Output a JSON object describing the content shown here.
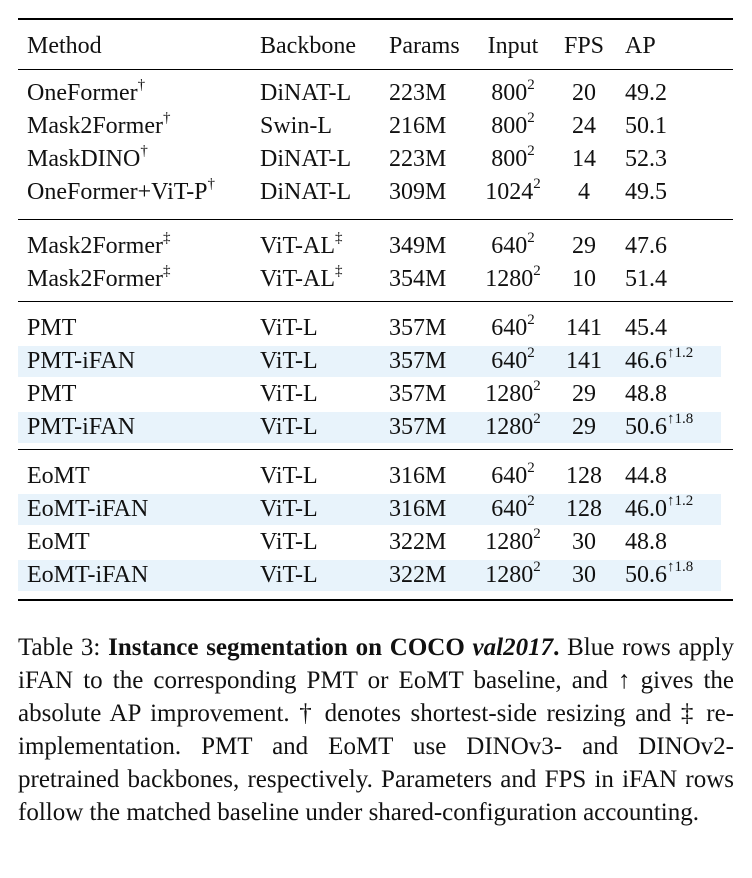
{
  "table": {
    "headers": [
      "Method",
      "Backbone",
      "Params",
      "Input",
      "FPS",
      "AP"
    ],
    "groups": [
      [
        {
          "method": "OneFormer",
          "method_mark": "†",
          "backbone": "DiNAT-L",
          "backbone_mark": "",
          "params": "223M",
          "input_base": "800",
          "input_exp": "2",
          "fps": "20",
          "ap": "49.2",
          "ap_gain": "",
          "highlight": false
        },
        {
          "method": "Mask2Former",
          "method_mark": "†",
          "backbone": "Swin-L",
          "backbone_mark": "",
          "params": "216M",
          "input_base": "800",
          "input_exp": "2",
          "fps": "24",
          "ap": "50.1",
          "ap_gain": "",
          "highlight": false
        },
        {
          "method": "MaskDINO",
          "method_mark": "†",
          "backbone": "DiNAT-L",
          "backbone_mark": "",
          "params": "223M",
          "input_base": "800",
          "input_exp": "2",
          "fps": "14",
          "ap": "52.3",
          "ap_gain": "",
          "highlight": false
        },
        {
          "method": "OneFormer+ViT-P",
          "method_mark": "†",
          "backbone": "DiNAT-L",
          "backbone_mark": "",
          "params": "309M",
          "input_base": "1024",
          "input_exp": "2",
          "fps": "4",
          "ap": "49.5",
          "ap_gain": "",
          "highlight": false
        }
      ],
      [
        {
          "method": "Mask2Former",
          "method_mark": "‡",
          "backbone": "ViT-AL",
          "backbone_mark": "‡",
          "params": "349M",
          "input_base": "640",
          "input_exp": "2",
          "fps": "29",
          "ap": "47.6",
          "ap_gain": "",
          "highlight": false
        },
        {
          "method": "Mask2Former",
          "method_mark": "‡",
          "backbone": "ViT-AL",
          "backbone_mark": "‡",
          "params": "354M",
          "input_base": "1280",
          "input_exp": "2",
          "fps": "10",
          "ap": "51.4",
          "ap_gain": "",
          "highlight": false
        }
      ],
      [
        {
          "method": "PMT",
          "method_mark": "",
          "backbone": "ViT-L",
          "backbone_mark": "",
          "params": "357M",
          "input_base": "640",
          "input_exp": "2",
          "fps": "141",
          "ap": "45.4",
          "ap_gain": "",
          "highlight": false
        },
        {
          "method": "PMT-iFAN",
          "method_mark": "",
          "backbone": "ViT-L",
          "backbone_mark": "",
          "params": "357M",
          "input_base": "640",
          "input_exp": "2",
          "fps": "141",
          "ap": "46.6",
          "ap_gain": "↑1.2",
          "highlight": true
        },
        {
          "method": "PMT",
          "method_mark": "",
          "backbone": "ViT-L",
          "backbone_mark": "",
          "params": "357M",
          "input_base": "1280",
          "input_exp": "2",
          "fps": "29",
          "ap": "48.8",
          "ap_gain": "",
          "highlight": false
        },
        {
          "method": "PMT-iFAN",
          "method_mark": "",
          "backbone": "ViT-L",
          "backbone_mark": "",
          "params": "357M",
          "input_base": "1280",
          "input_exp": "2",
          "fps": "29",
          "ap": "50.6",
          "ap_gain": "↑1.8",
          "highlight": true
        }
      ],
      [
        {
          "method": "EoMT",
          "method_mark": "",
          "backbone": "ViT-L",
          "backbone_mark": "",
          "params": "316M",
          "input_base": "640",
          "input_exp": "2",
          "fps": "128",
          "ap": "44.8",
          "ap_gain": "",
          "highlight": false
        },
        {
          "method": "EoMT-iFAN",
          "method_mark": "",
          "backbone": "ViT-L",
          "backbone_mark": "",
          "params": "316M",
          "input_base": "640",
          "input_exp": "2",
          "fps": "128",
          "ap": "46.0",
          "ap_gain": "↑1.2",
          "highlight": true
        },
        {
          "method": "EoMT",
          "method_mark": "",
          "backbone": "ViT-L",
          "backbone_mark": "",
          "params": "322M",
          "input_base": "1280",
          "input_exp": "2",
          "fps": "30",
          "ap": "48.8",
          "ap_gain": "",
          "highlight": false
        },
        {
          "method": "EoMT-iFAN",
          "method_mark": "",
          "backbone": "ViT-L",
          "backbone_mark": "",
          "params": "322M",
          "input_base": "1280",
          "input_exp": "2",
          "fps": "30",
          "ap": "50.6",
          "ap_gain": "↑1.8",
          "highlight": true
        }
      ]
    ],
    "highlight_color": "#e8f3fb"
  },
  "caption": {
    "label": "Table 3:",
    "title_bold": "Instance segmentation on COCO",
    "title_italic": "val2017",
    "title_end": ".",
    "text": "Blue rows apply iFAN to the corresponding PMT or EoMT baseline, and ↑ gives the absolute AP improvement. † denotes shortest-side resizing and ‡ re-implementation. PMT and EoMT use DINOv3- and DINOv2-pretrained backbones, respectively. Parameters and FPS in iFAN rows follow the matched baseline under shared-configuration accounting."
  }
}
